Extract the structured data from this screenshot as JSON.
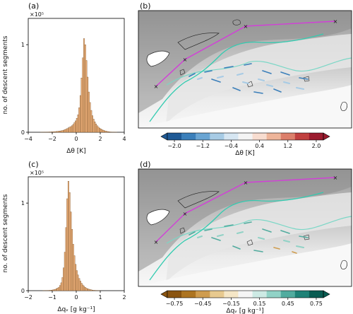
{
  "chart_data": [
    {
      "type": "bar",
      "panel_label": "(a)",
      "ylabel": "no. of descent segments",
      "xlabel": "Δθ [K]",
      "multiplier": "×10⁵",
      "xlim": [
        -4,
        4
      ],
      "ylim": [
        0,
        1.3
      ],
      "xticks": [
        "−4",
        "−2",
        "0",
        "2",
        "4"
      ],
      "yticks": [
        "0",
        "1"
      ],
      "bin_width": 0.1,
      "bin_start": -4,
      "values": [
        0,
        0,
        0,
        0,
        0,
        0,
        0,
        0,
        0,
        0,
        0.001,
        0.001,
        0.001,
        0.002,
        0.002,
        0.003,
        0.003,
        0.004,
        0.004,
        0.005,
        0.006,
        0.007,
        0.008,
        0.009,
        0.011,
        0.013,
        0.015,
        0.017,
        0.02,
        0.024,
        0.03,
        0.036,
        0.043,
        0.05,
        0.058,
        0.065,
        0.075,
        0.09,
        0.11,
        0.13,
        0.16,
        0.2,
        0.28,
        0.42,
        0.62,
        0.85,
        1.07,
        1.0,
        0.82,
        0.63,
        0.46,
        0.34,
        0.25,
        0.19,
        0.15,
        0.12,
        0.095,
        0.075,
        0.06,
        0.048,
        0.038,
        0.03,
        0.024,
        0.018,
        0.014,
        0.011,
        0.008,
        0.006,
        0.004,
        0.003,
        0.002,
        0.002,
        0.001,
        0.001,
        0,
        0,
        0,
        0,
        0,
        0
      ]
    },
    {
      "type": "heatmap",
      "panel_label": "(b)",
      "colorbar_label": "Δθ [K]",
      "colorbar_ticks": [
        "−2.0",
        "−1.2",
        "−0.4",
        "0.4",
        "1.2",
        "2.0"
      ],
      "colorbar_colors": [
        "#1f5a96",
        "#3b7fba",
        "#6aa5d3",
        "#a7cbe5",
        "#d6e6f2",
        "#f4f4f4",
        "#f8ddd0",
        "#eeb59a",
        "#dc7f6b",
        "#c0403f",
        "#9b1b2e"
      ]
    },
    {
      "type": "bar",
      "panel_label": "(c)",
      "ylabel": "no. of descent segments",
      "xlabel": "Δqᵥ [g kg⁻¹]",
      "multiplier": "×10⁵",
      "xlim": [
        -2,
        2
      ],
      "ylim": [
        0,
        1.3
      ],
      "xticks": [
        "−2",
        "−1",
        "0",
        "1",
        "2"
      ],
      "yticks": [
        "0",
        "1"
      ],
      "bin_width": 0.05,
      "bin_start": -2,
      "values": [
        0,
        0,
        0,
        0,
        0,
        0,
        0,
        0,
        0,
        0,
        0,
        0,
        0.001,
        0.001,
        0.002,
        0.002,
        0.003,
        0.004,
        0.005,
        0.007,
        0.009,
        0.012,
        0.016,
        0.022,
        0.03,
        0.04,
        0.06,
        0.09,
        0.15,
        0.26,
        0.44,
        0.72,
        1.05,
        1.25,
        1.12,
        0.9,
        0.7,
        0.53,
        0.4,
        0.3,
        0.23,
        0.18,
        0.14,
        0.11,
        0.085,
        0.065,
        0.05,
        0.038,
        0.029,
        0.022,
        0.017,
        0.013,
        0.01,
        0.007,
        0.005,
        0.004,
        0.003,
        0.002,
        0.001,
        0.001,
        0,
        0,
        0,
        0,
        0,
        0,
        0,
        0,
        0,
        0,
        0,
        0,
        0,
        0,
        0,
        0,
        0,
        0,
        0,
        0
      ]
    },
    {
      "type": "heatmap",
      "panel_label": "(d)",
      "colorbar_label": "Δqᵥ [g kg⁻¹]",
      "colorbar_ticks": [
        "−0.75",
        "−0.45",
        "−0.15",
        "0.15",
        "0.45",
        "0.75"
      ],
      "colorbar_colors": [
        "#8a5410",
        "#ad7421",
        "#cf9c4e",
        "#e7c98f",
        "#f5e6c6",
        "#f5f5f5",
        "#cdeae4",
        "#91d2c6",
        "#52ac9f",
        "#1f8277",
        "#0a5c52"
      ]
    }
  ]
}
